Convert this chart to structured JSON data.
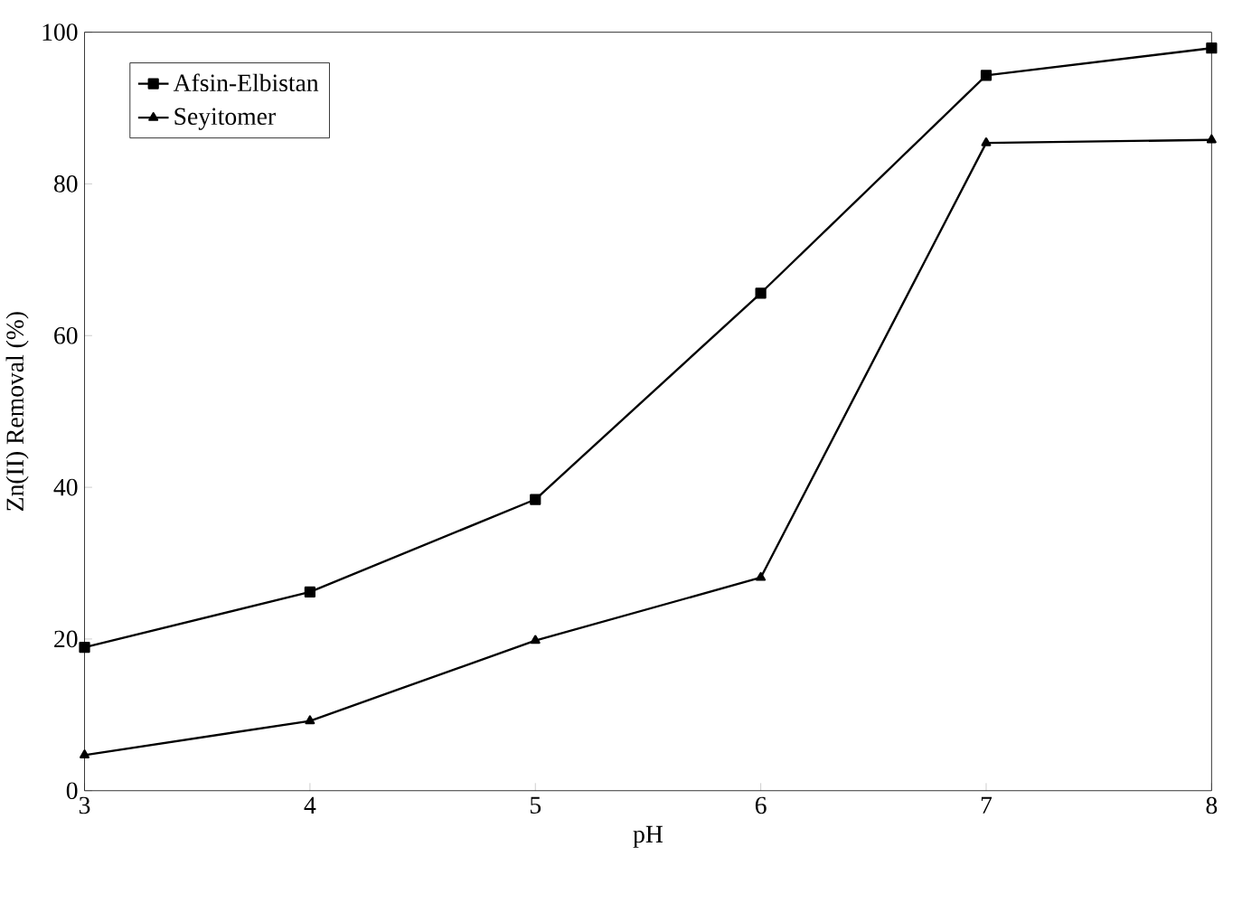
{
  "chart_data": {
    "type": "line",
    "xlabel": "pH",
    "ylabel": "Zn(II) Removal (%)",
    "x": [
      3,
      4,
      5,
      6,
      7,
      8
    ],
    "series": [
      {
        "name": "Afsin-Elbistan",
        "color": "#000000",
        "marker": "square",
        "values": [
          18.9,
          26.2,
          38.4,
          65.6,
          94.3,
          97.9
        ]
      },
      {
        "name": "Seyitomer",
        "color": "#000000",
        "marker": "triangle",
        "values": [
          4.7,
          9.2,
          19.8,
          28.1,
          85.4,
          85.8
        ]
      }
    ],
    "xlim": [
      3,
      8
    ],
    "xticks": [
      3,
      4,
      5,
      6,
      7,
      8
    ],
    "ylim": [
      0,
      100
    ],
    "yticks": [
      0,
      20,
      40,
      60,
      80,
      100
    ],
    "grid": false,
    "legend": "top left",
    "line_style": "solid"
  }
}
